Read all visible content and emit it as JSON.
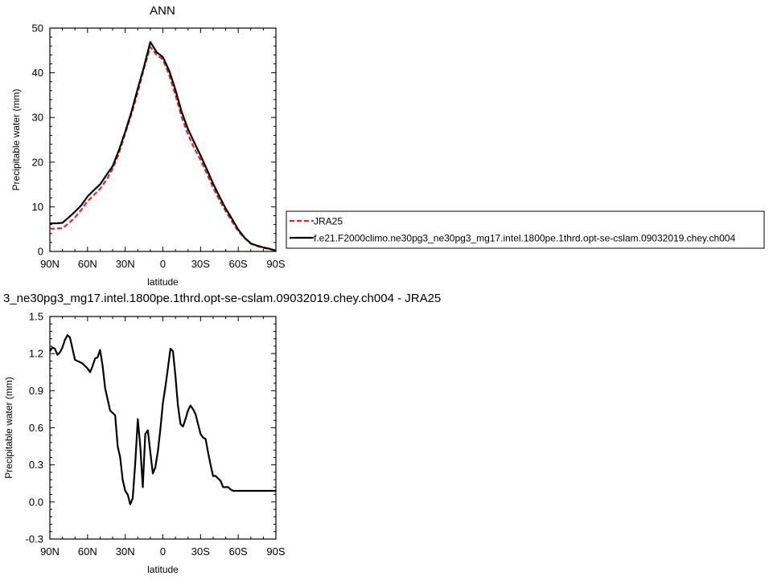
{
  "chart_data": [
    {
      "type": "line",
      "title": "ANN",
      "xlabel": "latitude",
      "ylabel": "Precipitable water (mm)",
      "xlim": [
        90,
        -90
      ],
      "ylim": [
        0,
        50
      ],
      "x_ticks": [
        {
          "value": 90,
          "label": "90N"
        },
        {
          "value": 60,
          "label": "60N"
        },
        {
          "value": 30,
          "label": "30N"
        },
        {
          "value": 0,
          "label": "0"
        },
        {
          "value": -30,
          "label": "30S"
        },
        {
          "value": -60,
          "label": "60S"
        },
        {
          "value": -90,
          "label": "90S"
        }
      ],
      "y_ticks": [
        {
          "value": 0,
          "label": "0"
        },
        {
          "value": 10,
          "label": "10"
        },
        {
          "value": 20,
          "label": "20"
        },
        {
          "value": 30,
          "label": "30"
        },
        {
          "value": 40,
          "label": "40"
        },
        {
          "value": 50,
          "label": "50"
        }
      ],
      "legend_position": "right",
      "series": [
        {
          "name": "JRA25",
          "color": "#e8231f",
          "dash": "dashed",
          "x": [
            90,
            85,
            80,
            75,
            70,
            65,
            60,
            55,
            50,
            45,
            40,
            35,
            30,
            25,
            20,
            15,
            10,
            5,
            0,
            -5,
            -10,
            -15,
            -20,
            -25,
            -30,
            -35,
            -40,
            -45,
            -50,
            -55,
            -60,
            -65,
            -70,
            -75,
            -80,
            -85,
            -90
          ],
          "values": [
            5.1,
            5.1,
            5.2,
            6.3,
            7.6,
            9.3,
            11.2,
            12.6,
            14.0,
            16.0,
            18.5,
            22.0,
            26.4,
            30.8,
            35.6,
            41.0,
            45.8,
            44.0,
            43.0,
            39.5,
            35.0,
            30.0,
            26.2,
            23.1,
            20.5,
            17.5,
            14.3,
            11.5,
            9.0,
            6.7,
            4.5,
            3.0,
            1.7,
            1.2,
            0.8,
            0.5,
            0.2
          ]
        },
        {
          "name": "f.e21.F2000climo.ne30pg3_ne30pg3_mg17.intel.1800pe.1thrd.opt-se-cslam.09032019.chey.ch004",
          "color": "#000000",
          "dash": "solid",
          "x": [
            90,
            85,
            80,
            75,
            70,
            65,
            60,
            55,
            50,
            45,
            40,
            35,
            30,
            25,
            20,
            15,
            10,
            5,
            0,
            -5,
            -10,
            -15,
            -20,
            -25,
            -30,
            -35,
            -40,
            -45,
            -50,
            -55,
            -60,
            -65,
            -70,
            -75,
            -80,
            -85,
            -90
          ],
          "values": [
            6.3,
            6.3,
            6.4,
            7.6,
            8.9,
            10.3,
            12.3,
            13.7,
            15.0,
            17.1,
            19.1,
            22.7,
            26.8,
            31.3,
            36.5,
            41.4,
            46.9,
            44.6,
            43.5,
            40.5,
            36.2,
            31.2,
            27.4,
            24.4,
            21.5,
            18.4,
            15.2,
            12.3,
            9.6,
            7.3,
            4.9,
            3.1,
            1.8,
            1.3,
            0.9,
            0.6,
            0.2
          ]
        }
      ]
    },
    {
      "type": "line",
      "title": "3_ne30pg3_mg17.intel.1800pe.1thrd.opt-se-cslam.09032019.chey.ch004 - JRA25",
      "xlabel": "latitude",
      "ylabel": "Precipitable water (mm)",
      "xlim": [
        90,
        -90
      ],
      "ylim": [
        -0.3,
        1.5
      ],
      "x_ticks": [
        {
          "value": 90,
          "label": "90N"
        },
        {
          "value": 60,
          "label": "60N"
        },
        {
          "value": 30,
          "label": "30N"
        },
        {
          "value": 0,
          "label": "0"
        },
        {
          "value": -30,
          "label": "30S"
        },
        {
          "value": -60,
          "label": "60S"
        },
        {
          "value": -90,
          "label": "90S"
        }
      ],
      "y_ticks": [
        {
          "value": -0.3,
          "label": "-0.3"
        },
        {
          "value": 0.0,
          "label": "0.0"
        },
        {
          "value": 0.3,
          "label": "0.3"
        },
        {
          "value": 0.6,
          "label": "0.6"
        },
        {
          "value": 0.9,
          "label": "0.9"
        },
        {
          "value": 1.2,
          "label": "1.2"
        },
        {
          "value": 1.5,
          "label": "1.5"
        }
      ],
      "series": [
        {
          "color": "#000000",
          "dash": "solid",
          "x": [
            90,
            88,
            86,
            84,
            82,
            80,
            78,
            76,
            74,
            72,
            70,
            68,
            66,
            64,
            62,
            60,
            58,
            56,
            54,
            52,
            50,
            48,
            46,
            44,
            42,
            40,
            38,
            36,
            34,
            32,
            30,
            28,
            26,
            24,
            22,
            20,
            18,
            16,
            14,
            12,
            10,
            8,
            6,
            4,
            2,
            0,
            -2,
            -4,
            -6,
            -8,
            -10,
            -12,
            -14,
            -16,
            -18,
            -20,
            -22,
            -24,
            -26,
            -28,
            -30,
            -32,
            -34,
            -36,
            -38,
            -40,
            -42,
            -44,
            -46,
            -48,
            -50,
            -52,
            -54,
            -56,
            -58,
            -60,
            -62,
            -64,
            -66,
            -68,
            -70,
            -72,
            -74,
            -76,
            -78,
            -80,
            -82,
            -84,
            -86,
            -88,
            -90
          ],
          "values": [
            1.22,
            1.25,
            1.24,
            1.19,
            1.21,
            1.25,
            1.31,
            1.35,
            1.33,
            1.24,
            1.15,
            1.14,
            1.13,
            1.12,
            1.1,
            1.08,
            1.05,
            1.1,
            1.16,
            1.17,
            1.23,
            1.1,
            0.92,
            0.83,
            0.74,
            0.72,
            0.7,
            0.45,
            0.36,
            0.18,
            0.09,
            0.06,
            -0.02,
            0.03,
            0.32,
            0.67,
            0.45,
            0.12,
            0.55,
            0.58,
            0.4,
            0.23,
            0.28,
            0.41,
            0.59,
            0.8,
            0.93,
            1.08,
            1.24,
            1.22,
            1.02,
            0.78,
            0.63,
            0.61,
            0.67,
            0.74,
            0.78,
            0.75,
            0.71,
            0.63,
            0.55,
            0.52,
            0.51,
            0.4,
            0.3,
            0.21,
            0.21,
            0.19,
            0.17,
            0.12,
            0.12,
            0.12,
            0.1,
            0.09,
            0.09,
            0.09,
            0.09,
            0.09,
            0.09,
            0.09,
            0.09,
            0.09,
            0.09,
            0.09,
            0.09,
            0.09,
            0.09,
            0.09,
            0.09,
            0.09,
            0.09
          ]
        }
      ]
    }
  ]
}
